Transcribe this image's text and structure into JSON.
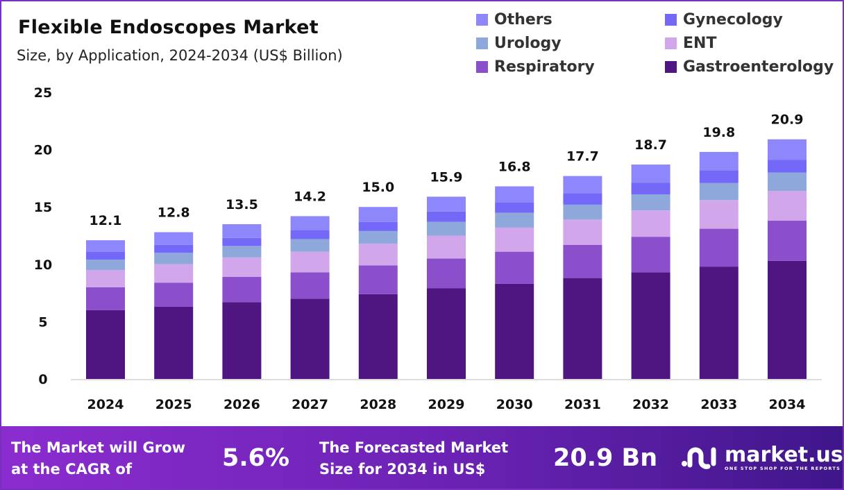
{
  "title": "Flexible Endoscopes Market",
  "subtitle": "Size, by Application, 2024-2034 (US$ Billion)",
  "legend": [
    {
      "name": "Others",
      "color": "#8e87fb"
    },
    {
      "name": "Gynecology",
      "color": "#7468f8"
    },
    {
      "name": "Urology",
      "color": "#8ea8dc"
    },
    {
      "name": "ENT",
      "color": "#d2a6ea"
    },
    {
      "name": "Respiratory",
      "color": "#8b4fcb"
    },
    {
      "name": "Gastroenterology",
      "color": "#4f1681"
    }
  ],
  "chart_data": {
    "type": "bar",
    "stacked": true,
    "categories": [
      "2024",
      "2025",
      "2026",
      "2027",
      "2028",
      "2029",
      "2030",
      "2031",
      "2032",
      "2033",
      "2034"
    ],
    "ylim": [
      0,
      25
    ],
    "yticks": [
      "0",
      "5",
      "10",
      "15",
      "20",
      "25"
    ],
    "grid": false,
    "legend_position": "top-right",
    "totals": [
      "12.1",
      "12.8",
      "13.5",
      "14.2",
      "15.0",
      "15.9",
      "16.8",
      "17.7",
      "18.7",
      "19.8",
      "20.9"
    ],
    "series": [
      {
        "name": "Gastroenterology",
        "color": "#4f1681",
        "values": [
          6.0,
          6.3,
          6.7,
          7.0,
          7.4,
          7.9,
          8.3,
          8.8,
          9.3,
          9.8,
          10.3
        ]
      },
      {
        "name": "Respiratory",
        "color": "#8b4fcb",
        "values": [
          2.0,
          2.1,
          2.2,
          2.3,
          2.5,
          2.6,
          2.8,
          2.9,
          3.1,
          3.3,
          3.5
        ]
      },
      {
        "name": "ENT",
        "color": "#d2a6ea",
        "values": [
          1.5,
          1.6,
          1.7,
          1.8,
          1.9,
          2.0,
          2.1,
          2.2,
          2.3,
          2.5,
          2.6
        ]
      },
      {
        "name": "Urology",
        "color": "#8ea8dc",
        "values": [
          0.9,
          1.0,
          1.0,
          1.1,
          1.1,
          1.2,
          1.3,
          1.3,
          1.4,
          1.5,
          1.6
        ]
      },
      {
        "name": "Gynecology",
        "color": "#7468f8",
        "values": [
          0.7,
          0.7,
          0.7,
          0.8,
          0.8,
          0.9,
          0.9,
          1.0,
          1.0,
          1.1,
          1.1
        ]
      },
      {
        "name": "Others",
        "color": "#8e87fb",
        "values": [
          1.0,
          1.1,
          1.2,
          1.2,
          1.3,
          1.3,
          1.4,
          1.5,
          1.6,
          1.6,
          1.8
        ]
      }
    ]
  },
  "footer": {
    "cagr_label": "The Market will Grow at the CAGR of",
    "cagr_line1": "The Market will Grow",
    "cagr_line2": "at the CAGR of",
    "cagr_value": "5.6%",
    "forecast_line1": "The Forecasted Market",
    "forecast_line2": "Size for 2034 in US$",
    "forecast_value": "20.9 Bn",
    "logo_text": "market.us",
    "logo_tagline": "ONE STOP SHOP FOR THE REPORTS"
  }
}
